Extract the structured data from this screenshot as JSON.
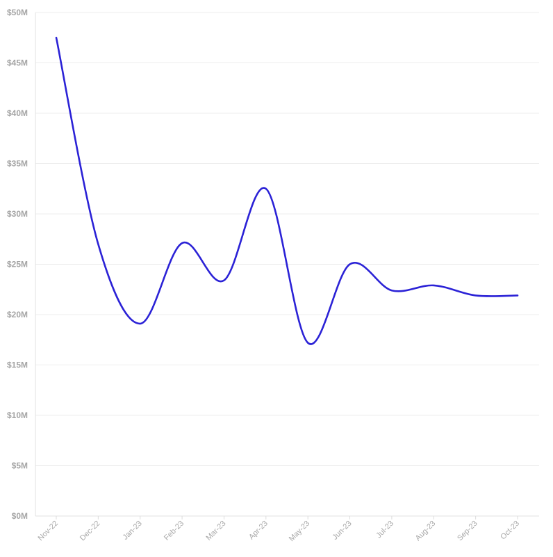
{
  "chart_data": {
    "type": "line",
    "title": "",
    "xlabel": "",
    "ylabel": "",
    "categories": [
      "Nov-22",
      "Dec-22",
      "Jan-23",
      "Feb-23",
      "Mar-23",
      "Apr-23",
      "May-23",
      "Jun-23",
      "Jul-23",
      "Aug-23",
      "Sep-23",
      "Oct-23"
    ],
    "series": [
      {
        "values": [
          47.5,
          27.0,
          19.1,
          27.1,
          23.4,
          32.5,
          17.2,
          25.0,
          22.4,
          22.9,
          21.9,
          21.9
        ],
        "color": "#2b22d6"
      }
    ],
    "ylim": [
      0,
      50
    ],
    "y_ticks": [
      0,
      5,
      10,
      15,
      20,
      25,
      30,
      35,
      40,
      45,
      50
    ],
    "y_tick_labels": [
      "$0M",
      "$5M",
      "$10M",
      "$15M",
      "$20M",
      "$25M",
      "$30M",
      "$35M",
      "$40M",
      "$45M",
      "$50M"
    ],
    "y_unit": "$M",
    "grid": true,
    "legend": "none",
    "curve": "smooth"
  }
}
